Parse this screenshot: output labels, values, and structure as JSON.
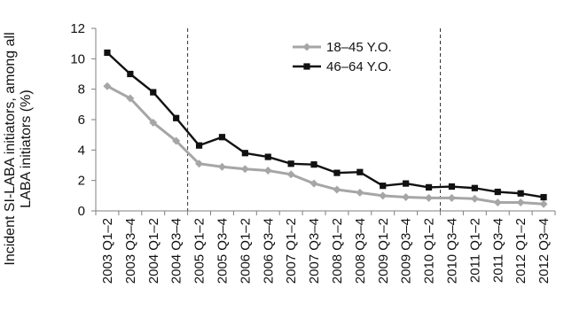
{
  "chart_data": {
    "type": "line",
    "ylabel_lines": [
      "Incident SI-LABA initiators, among all",
      "LABA initiators (%)"
    ],
    "ylim": [
      0,
      12
    ],
    "y_ticks": [
      0,
      2,
      4,
      6,
      8,
      10,
      12
    ],
    "categories": [
      "2003 Q1–2",
      "2003 Q3–4",
      "2004 Q1–2",
      "2004 Q3–4",
      "2005 Q1–2",
      "2005 Q3–4",
      "2006 Q1–2",
      "2006 Q3–4",
      "2007 Q1–2",
      "2007 Q3–4",
      "2008 Q1–2",
      "2008 Q3–4",
      "2009 Q1–2",
      "2009 Q3–4",
      "2010 Q1–2",
      "2010 Q3–4",
      "2011 Q1–2",
      "2011 Q3–4",
      "2012 Q1–2",
      "2012 Q3–4"
    ],
    "series": [
      {
        "name": "18–45 Y.O.",
        "color": "#a6a6a6",
        "marker": "diamond",
        "values": [
          8.2,
          7.4,
          5.8,
          4.6,
          3.1,
          2.9,
          2.75,
          2.65,
          2.4,
          1.8,
          1.4,
          1.2,
          1.0,
          0.9,
          0.85,
          0.85,
          0.8,
          0.55,
          0.55,
          0.45
        ]
      },
      {
        "name": "46–64 Y.O.",
        "color": "#111111",
        "marker": "square",
        "values": [
          10.4,
          9.0,
          7.8,
          6.1,
          4.3,
          4.85,
          3.8,
          3.55,
          3.1,
          3.05,
          2.5,
          2.55,
          1.65,
          1.8,
          1.55,
          1.6,
          1.5,
          1.25,
          1.15,
          0.9
        ]
      }
    ],
    "vertical_dashed_lines_between": [
      [
        "2004 Q3–4",
        "2005 Q1–2"
      ],
      [
        "2010 Q1–2",
        "2010 Q3–4"
      ]
    ],
    "grid": false,
    "legend_position": "top-right"
  }
}
